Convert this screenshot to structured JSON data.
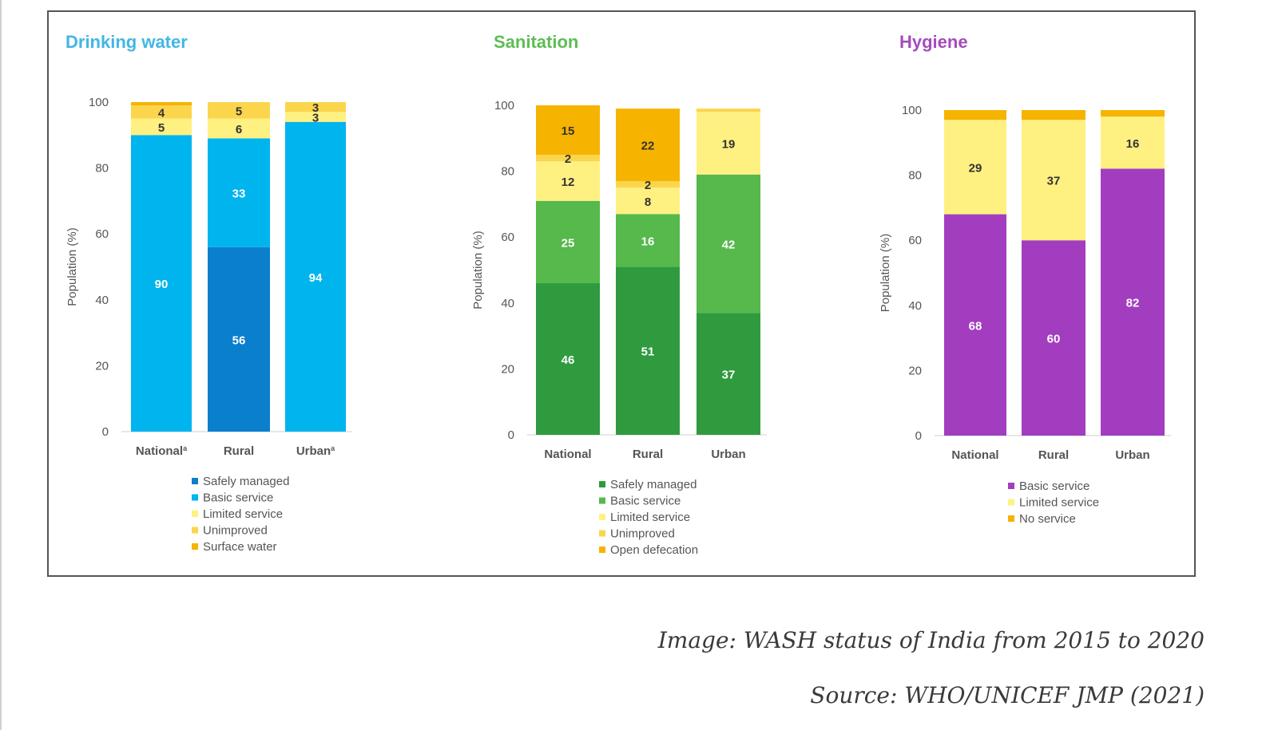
{
  "chart_data": [
    {
      "type": "bar",
      "stacked": true,
      "title": "Drinking water",
      "title_color": "#42b7e4",
      "ylabel": "Population (%)",
      "ylim": [
        0,
        100
      ],
      "yticks": [
        0,
        20,
        40,
        60,
        80,
        100
      ],
      "categories": [
        "National",
        "Rural",
        "Urban"
      ],
      "category_marks": [
        "a",
        "",
        "a"
      ],
      "series": [
        {
          "name": "Safely managed",
          "color": "#0a7fcc",
          "values": [
            null,
            56,
            null
          ],
          "labels": [
            "",
            "56",
            ""
          ]
        },
        {
          "name": "Basic service",
          "color": "#00b4ee",
          "values": [
            90,
            33,
            94
          ],
          "labels": [
            "90",
            "33",
            "94"
          ]
        },
        {
          "name": "Limited service",
          "color": "#fff082",
          "values": [
            5,
            6,
            3
          ],
          "labels": [
            "5",
            "6",
            "3"
          ]
        },
        {
          "name": "Unimproved",
          "color": "#fbd54c",
          "values": [
            4,
            5,
            3
          ],
          "labels": [
            "4",
            "5",
            "3"
          ]
        },
        {
          "name": "Surface water",
          "color": "#f6b300",
          "values": [
            1,
            0,
            0
          ],
          "labels": [
            "",
            "",
            ""
          ]
        }
      ]
    },
    {
      "type": "bar",
      "stacked": true,
      "title": "Sanitation",
      "title_color": "#5ebd53",
      "ylabel": "Population (%)",
      "ylim": [
        0,
        100
      ],
      "yticks": [
        0,
        20,
        40,
        60,
        80,
        100
      ],
      "categories": [
        "National",
        "Rural",
        "Urban"
      ],
      "category_marks": [
        "",
        "",
        ""
      ],
      "series": [
        {
          "name": "Safely managed",
          "color": "#2f9a3e",
          "values": [
            46,
            51,
            37
          ],
          "labels": [
            "46",
            "51",
            "37"
          ]
        },
        {
          "name": "Basic service",
          "color": "#55b94c",
          "values": [
            25,
            16,
            42
          ],
          "labels": [
            "25",
            "16",
            "42"
          ]
        },
        {
          "name": "Limited service",
          "color": "#fff082",
          "values": [
            12,
            8,
            19
          ],
          "labels": [
            "12",
            "8",
            "19"
          ]
        },
        {
          "name": "Unimproved",
          "color": "#fbd54c",
          "values": [
            2,
            2,
            1
          ],
          "labels": [
            "2",
            "2",
            ""
          ]
        },
        {
          "name": "Open defecation",
          "color": "#f6b300",
          "values": [
            15,
            22,
            0
          ],
          "labels": [
            "15",
            "22",
            ""
          ]
        }
      ]
    },
    {
      "type": "bar",
      "stacked": true,
      "title": "Hygiene",
      "title_color": "#a54bbd",
      "ylabel": "Population (%)",
      "ylim": [
        0,
        100
      ],
      "yticks": [
        0,
        20,
        40,
        60,
        80,
        100
      ],
      "categories": [
        "National",
        "Rural",
        "Urban"
      ],
      "category_marks": [
        "",
        "",
        ""
      ],
      "series": [
        {
          "name": "Basic service",
          "color": "#a33dbf",
          "values": [
            68,
            60,
            82
          ],
          "labels": [
            "68",
            "60",
            "82"
          ]
        },
        {
          "name": "Limited service",
          "color": "#fff082",
          "values": [
            29,
            37,
            16
          ],
          "labels": [
            "29",
            "37",
            "16"
          ]
        },
        {
          "name": "No service",
          "color": "#f6b300",
          "values": [
            3,
            3,
            2
          ],
          "labels": [
            "",
            "",
            ""
          ]
        }
      ]
    }
  ],
  "caption": {
    "title": "Image: WASH status of India from 2015 to 2020",
    "source": "Source: WHO/UNICEF JMP (2021)"
  }
}
